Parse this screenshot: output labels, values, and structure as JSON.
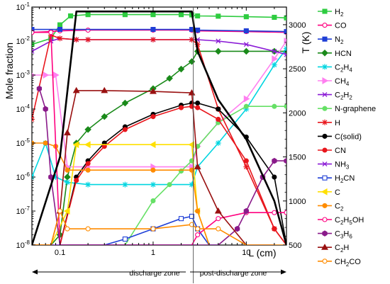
{
  "chart_data": {
    "type": "line",
    "xlabel": "L (cm)",
    "ylabel": "Mole fraction",
    "y2label": "T (K)",
    "xscale": "log",
    "yscale": "log",
    "xlim": [
      0.05,
      27
    ],
    "ylim": [
      1e-08,
      0.1
    ],
    "y2lim": [
      500,
      3200
    ],
    "x_ticks": [
      {
        "v": 0.1,
        "label": "0.1"
      },
      {
        "v": 1,
        "label": "1"
      },
      {
        "v": 10,
        "label": "10"
      }
    ],
    "y_ticks": [
      {
        "v": 1e-08,
        "base": "10",
        "exp": "-8"
      },
      {
        "v": 1e-07,
        "base": "10",
        "exp": "-7"
      },
      {
        "v": 1e-06,
        "base": "10",
        "exp": "-6"
      },
      {
        "v": 1e-05,
        "base": "10",
        "exp": "-5"
      },
      {
        "v": 0.0001,
        "base": "10",
        "exp": "-4"
      },
      {
        "v": 0.001,
        "base": "10",
        "exp": "-3"
      },
      {
        "v": 0.01,
        "base": "10",
        "exp": "-2"
      },
      {
        "v": 0.1,
        "base": "10",
        "exp": "-1"
      }
    ],
    "y2_ticks": [
      500,
      1000,
      1500,
      2000,
      2500,
      3000
    ],
    "divider_x": 2.7,
    "zones": {
      "left": "discharge zone",
      "right": "post-discharge zone"
    },
    "series": [
      {
        "name": "H2",
        "label_base": "H",
        "label_sub": "2",
        "color": "#2ecc40",
        "marker": "square",
        "filled": true,
        "x": [
          0.05,
          0.08,
          0.1,
          0.13,
          0.2,
          0.5,
          1,
          2,
          2.6,
          3,
          5,
          10,
          20,
          27
        ],
        "y": [
          0.008,
          0.012,
          0.03,
          0.055,
          0.06,
          0.06,
          0.06,
          0.06,
          0.059,
          0.055,
          0.054,
          0.052,
          0.05,
          0.048
        ]
      },
      {
        "name": "CO",
        "label_base": "CO",
        "label_sub": "",
        "color": "#ff007f",
        "marker": "circle",
        "filled": false,
        "x": [
          0.05,
          0.08,
          0.1,
          0.2,
          1,
          2.6,
          3,
          10,
          27
        ],
        "y": [
          0.018,
          0.019,
          0.02,
          0.021,
          0.021,
          0.021,
          0.02,
          0.019,
          0.018
        ]
      },
      {
        "name": "N2",
        "label_base": "N",
        "label_sub": "2",
        "color": "#1f3fd6",
        "marker": "square",
        "filled": true,
        "x": [
          0.05,
          0.1,
          1,
          2.6,
          3,
          10,
          27
        ],
        "y": [
          0.022,
          0.022,
          0.022,
          0.022,
          0.021,
          0.02,
          0.019
        ]
      },
      {
        "name": "HCN",
        "label_base": "HCN",
        "label_sub": "",
        "color": "#1a8a1a",
        "marker": "diamond",
        "filled": true,
        "x": [
          0.05,
          0.08,
          0.1,
          0.12,
          0.15,
          0.2,
          0.3,
          0.5,
          1,
          1.5,
          2,
          2.6,
          3,
          5,
          10,
          20,
          27
        ],
        "y": [
          1e-08,
          1e-08,
          2e-08,
          1e-06,
          1e-05,
          2.5e-05,
          6e-05,
          0.00015,
          0.0004,
          0.0008,
          0.0015,
          0.0025,
          0.005,
          0.005,
          0.005,
          0.005,
          0.005
        ]
      },
      {
        "name": "C2H4",
        "label_base": "C",
        "label_sub": "2",
        "label_rest": "H",
        "label_sub2": "4",
        "color": "#00d5e0",
        "marker": "star",
        "filled": false,
        "x": [
          0.05,
          0.07,
          0.09,
          0.12,
          0.2,
          0.5,
          1,
          2.6,
          3,
          5,
          10,
          20,
          27
        ],
        "y": [
          1e-06,
          1e-05,
          1e-06,
          7e-07,
          6e-07,
          6e-07,
          6e-07,
          6e-07,
          2e-06,
          1e-05,
          0.0001,
          0.002,
          0.006
        ]
      },
      {
        "name": "CH4",
        "label_base": "CH",
        "label_sub": "4",
        "color": "#ff80f0",
        "marker": "triangle-right",
        "filled": true,
        "x": [
          0.05,
          0.07,
          0.09,
          0.12,
          0.2,
          1,
          2.6,
          3,
          5,
          10,
          20,
          27
        ],
        "y": [
          0.001,
          0.001,
          0.001,
          2e-06,
          2e-06,
          2e-06,
          2e-06,
          8e-06,
          4e-05,
          0.0002,
          0.003,
          0.01
        ]
      },
      {
        "name": "C2H2",
        "label_base": "C",
        "label_sub": "2",
        "label_rest": "H",
        "label_sub2": "2",
        "color": "#8a1ad6",
        "marker": "x",
        "filled": false,
        "x": [
          0.05,
          0.08,
          0.1,
          0.15,
          0.2,
          1,
          2.6,
          3,
          5,
          10,
          20,
          27
        ],
        "y": [
          0.005,
          0.01,
          0.012,
          0.011,
          0.011,
          0.011,
          0.011,
          0.011,
          0.01,
          0.008,
          0.005,
          0.004
        ]
      },
      {
        "name": "N-graphene",
        "label_base": "N-graphene",
        "label_sub": "",
        "color": "#66e066",
        "marker": "circle",
        "filled": true,
        "x": [
          0.5,
          1,
          1.5,
          2,
          2.6,
          3,
          5,
          10,
          20,
          27
        ],
        "y": [
          1e-08,
          2e-07,
          6e-07,
          1.5e-06,
          3e-06,
          8e-06,
          4e-05,
          0.00012,
          0.00012,
          0.00012
        ]
      },
      {
        "name": "H",
        "label_base": "H",
        "label_sub": "",
        "color": "#e8161c",
        "marker": "star",
        "filled": true,
        "x": [
          0.05,
          0.08,
          0.1,
          0.15,
          0.2,
          1,
          2.6,
          3,
          5,
          10,
          20,
          27
        ],
        "y": [
          5e-05,
          0.015,
          0.012,
          0.011,
          0.011,
          0.011,
          0.011,
          0.008,
          0.0001,
          2e-06,
          3e-08,
          1e-08
        ]
      },
      {
        "name": "C(solid)",
        "label_base": "C(solid)",
        "label_sub": "",
        "color": "#000000",
        "marker": "circle",
        "filled": true,
        "x": [
          0.1,
          0.15,
          0.2,
          0.3,
          0.5,
          1,
          2,
          2.6,
          3,
          5,
          10,
          20,
          27
        ],
        "y": [
          1e-08,
          1e-06,
          3e-06,
          1e-05,
          3e-05,
          7e-05,
          0.00013,
          0.00015,
          0.00015,
          0.0001,
          1.5e-05,
          1e-06,
          1e-08
        ]
      },
      {
        "name": "CN",
        "label_base": "CN",
        "label_sub": "",
        "color": "#e8161c",
        "marker": "circle",
        "filled": true,
        "x": [
          0.1,
          0.15,
          0.2,
          0.3,
          0.5,
          1,
          2,
          2.6,
          3,
          5,
          10,
          20,
          27
        ],
        "y": [
          1e-08,
          8e-07,
          2.5e-06,
          8e-06,
          2.5e-05,
          6e-05,
          0.00011,
          0.00012,
          0.00011,
          5e-05,
          3e-06,
          3e-08,
          1e-08
        ]
      },
      {
        "name": "NH3",
        "label_base": "NH",
        "label_sub": "3",
        "color": "#8a1ad6",
        "marker": "x",
        "filled": false,
        "x": [
          0.05,
          0.2,
          0.5,
          1,
          2.6,
          3
        ],
        "y": [
          1e-08,
          1e-08,
          1e-08,
          1e-08,
          1e-08,
          1e-08
        ]
      },
      {
        "name": "H2CN",
        "label_base": "H",
        "label_sub": "2",
        "label_rest": "CN",
        "color": "#1f3fd6",
        "marker": "square",
        "filled": false,
        "x": [
          0.12,
          0.3,
          0.5,
          1,
          2,
          2.6,
          3,
          4,
          5
        ],
        "y": [
          1e-08,
          1e-08,
          1.5e-08,
          3e-08,
          6e-08,
          7e-08,
          3e-08,
          1e-08,
          1e-08
        ]
      },
      {
        "name": "C",
        "label_base": "C",
        "label_sub": "",
        "color": "#ffe000",
        "marker": "triangle-left",
        "filled": true,
        "x": [
          0.05,
          0.08,
          0.12,
          0.15,
          0.2,
          1,
          2.6,
          3,
          4
        ],
        "y": [
          1e-08,
          1e-08,
          1e-07,
          9e-06,
          9e-06,
          9e-06,
          9e-06,
          1e-07,
          1e-08
        ]
      },
      {
        "name": "C2",
        "label_base": "C",
        "label_sub": "2",
        "color": "#ff8c00",
        "marker": "circle",
        "filled": true,
        "x": [
          0.05,
          0.07,
          0.09,
          0.12,
          0.2,
          1,
          2.6,
          3,
          4
        ],
        "y": [
          1e-05,
          1e-05,
          8e-06,
          1.6e-06,
          1.6e-06,
          1.6e-06,
          1.6e-06,
          1e-07,
          1e-08
        ]
      },
      {
        "name": "C2H5OH",
        "label_base": "C",
        "label_sub": "2",
        "label_rest": "H",
        "label_sub2": "5",
        "label_tail": "OH",
        "color": "#ff007f",
        "marker": "circle",
        "filled": false,
        "x": [
          0.05,
          0.08,
          0.1,
          1,
          2.6,
          3,
          5,
          10,
          20,
          27
        ],
        "y": [
          0.018,
          0.018,
          1e-08,
          1e-08,
          1e-08,
          2e-08,
          6e-08,
          9e-08,
          9e-08,
          9e-08
        ]
      },
      {
        "name": "C3H6",
        "label_base": "C",
        "label_sub": "3",
        "label_rest": "H",
        "label_sub2": "6",
        "color": "#8a1a8a",
        "marker": "hexagon",
        "filled": true,
        "x": [
          0.06,
          0.07,
          0.08,
          0.1,
          0.3,
          1,
          2.6,
          3,
          5,
          8,
          10,
          15,
          20,
          27
        ],
        "y": [
          0.0004,
          0.0001,
          1e-06,
          1e-08,
          1e-08,
          1e-08,
          1e-08,
          1e-08,
          1e-08,
          3e-08,
          1e-07,
          1e-06,
          3e-06,
          3e-06
        ]
      },
      {
        "name": "C2H",
        "label_base": "C",
        "label_sub": "2",
        "label_rest": "H",
        "color": "#991010",
        "marker": "triangle",
        "filled": true,
        "x": [
          0.05,
          0.08,
          0.1,
          0.12,
          0.15,
          0.3,
          1,
          2.6,
          3,
          5,
          10,
          20
        ],
        "y": [
          1e-08,
          1e-08,
          1e-07,
          2e-05,
          0.00035,
          0.00035,
          0.00033,
          0.0003,
          2e-06,
          1e-07,
          1e-08,
          1e-08
        ]
      },
      {
        "name": "CH2CO",
        "label_base": "CH",
        "label_sub": "2",
        "label_rest": "CO",
        "color": "#ff8c00",
        "marker": "circle",
        "filled": false,
        "x": [
          0.05,
          0.08,
          0.1,
          0.12,
          0.2,
          1,
          2.6,
          3,
          5,
          10,
          20,
          27
        ],
        "y": [
          1e-08,
          1e-08,
          1e-07,
          3e-08,
          3e-08,
          3e-08,
          4e-08,
          3e-08,
          3e-08,
          1e-08,
          1e-08,
          1e-08
        ]
      }
    ],
    "temperature": {
      "name": "T",
      "color": "#000000",
      "x": [
        0.05,
        0.1,
        0.15,
        0.17,
        0.5,
        1,
        2.6,
        3,
        5,
        10,
        20,
        27
      ],
      "y": [
        500,
        1500,
        3150,
        3150,
        3150,
        3150,
        3150,
        2700,
        2150,
        1700,
        1000,
        500
      ]
    }
  }
}
